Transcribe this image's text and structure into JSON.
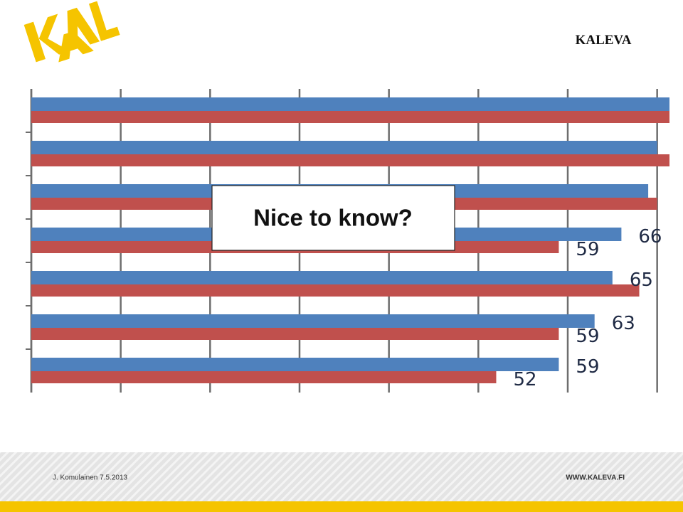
{
  "header": {
    "brand": "KALEVA"
  },
  "callout": "Nice to know?",
  "footer": {
    "author": "J. Komulainen 7.5.2013",
    "website": "WWW.KALEVA.FI"
  },
  "chart_data": {
    "type": "bar",
    "orientation": "horizontal",
    "categories": [
      null,
      null,
      null,
      null,
      null,
      null,
      null
    ],
    "series": [
      {
        "color": "#4f81bd",
        "values": [
          72,
          70,
          69,
          66,
          65,
          63,
          59
        ],
        "value_labels": [
          null,
          null,
          null,
          "66",
          "65",
          "63",
          "59"
        ]
      },
      {
        "color": "#c0504d",
        "values": [
          72,
          72,
          70,
          59,
          68,
          59,
          52
        ],
        "value_labels": [
          null,
          null,
          null,
          "59",
          null,
          "59",
          "52"
        ]
      }
    ],
    "xlim": [
      0,
      71.3
    ],
    "xticks": [
      0,
      10,
      20,
      30,
      40,
      50,
      60,
      70
    ],
    "grid": true
  }
}
